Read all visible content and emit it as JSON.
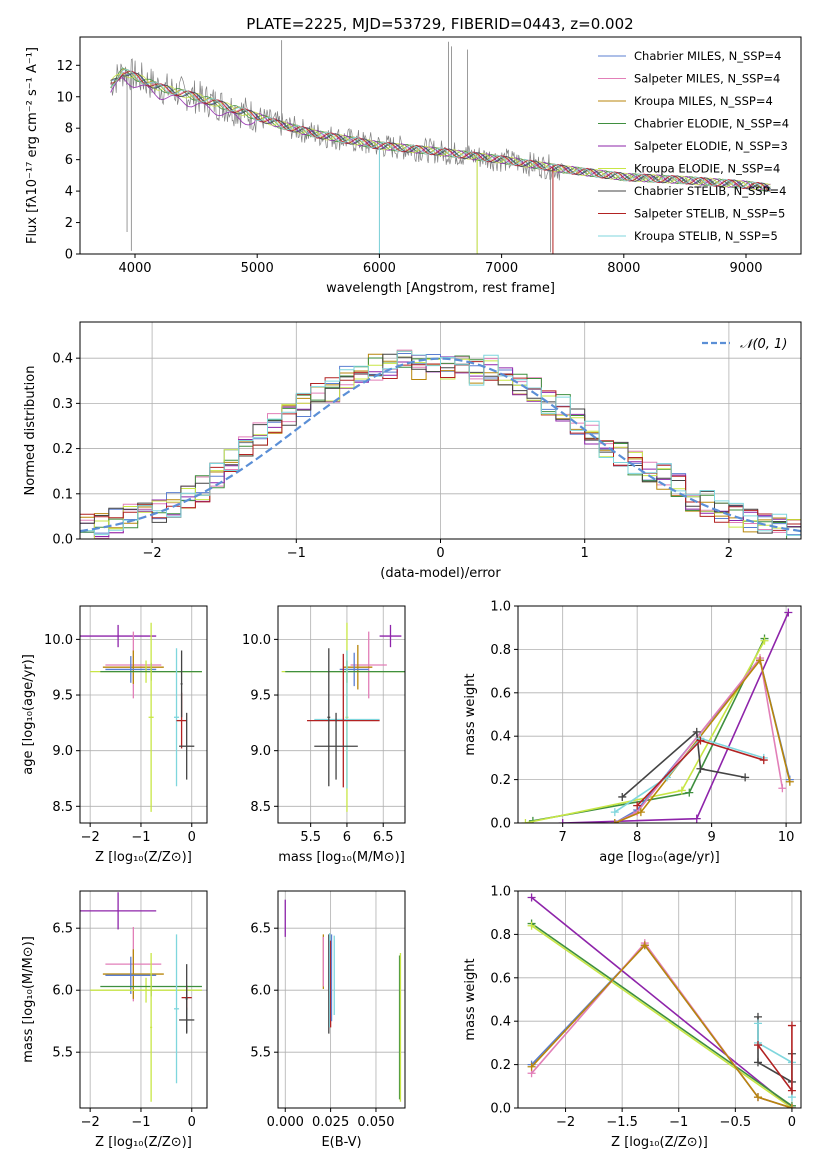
{
  "figure_title": "PLATE=2225, MJD=53729, FIBERID=0443, z=0.002",
  "colors": {
    "Chabrier MILES": "#5b7fd1",
    "Salpeter MILES": "#e27fb8",
    "Kroupa MILES": "#b8860b",
    "Chabrier ELODIE": "#3f8f3f",
    "Salpeter ELODIE": "#8e24aa",
    "Kroupa ELODIE": "#c8e645",
    "Chabrier STELIB": "#444444",
    "Salpeter STELIB": "#b22222",
    "Kroupa STELIB": "#7fd6dd",
    "observed": "#808080",
    "model_line": "#8fd8dc",
    "normal_curve": "#5b8fd6"
  },
  "chart_data": [
    {
      "id": "spectrum",
      "type": "line",
      "title": "PLATE=2225, MJD=53729, FIBERID=0443, z=0.002",
      "xlabel": "wavelength [Angstrom, rest frame]",
      "ylabel": "Flux [fλ10⁻¹⁷ erg cm⁻² s⁻¹ A⁻¹]",
      "xlim": [
        3550,
        9450
      ],
      "ylim": [
        0,
        13.8
      ],
      "xticks": [
        4000,
        5000,
        6000,
        7000,
        8000,
        9000
      ],
      "yticks": [
        0,
        2,
        4,
        6,
        8,
        10,
        12
      ],
      "legend": "top-right",
      "legend_labels": [
        "Chabrier MILES, N_SSP=4",
        "Salpeter MILES, N_SSP=4",
        "Kroupa MILES, N_SSP=4",
        "Chabrier ELODIE, N_SSP=4",
        "Salpeter ELODIE, N_SSP=3",
        "Kroupa ELODIE, N_SSP=4",
        "Chabrier STELIB, N_SSP=4",
        "Salpeter STELIB, N_SSP=5",
        "Kroupa STELIB, N_SSP=5"
      ],
      "continuum": {
        "x": [
          3800,
          3900,
          4000,
          4200,
          4500,
          4900,
          5200,
          5500,
          6000,
          6500,
          7000,
          7500,
          8000,
          8500,
          9000,
          9200
        ],
        "y": [
          10.8,
          11.6,
          11.3,
          10.6,
          10.0,
          9.0,
          8.2,
          7.6,
          6.9,
          6.5,
          6.0,
          5.4,
          4.9,
          4.7,
          4.4,
          4.2
        ]
      },
      "spikes": [
        {
          "x": 3935,
          "y": 1.4
        },
        {
          "x": 3970,
          "y": 0.2
        },
        {
          "x": 5890,
          "y": 6.4
        },
        {
          "x": 6000,
          "y": 0.1
        },
        {
          "x": 6565,
          "y": 13.5
        },
        {
          "x": 6590,
          "y": 13.2
        },
        {
          "x": 6720,
          "y": 13.0
        },
        {
          "x": 6800,
          "y": 0.1
        },
        {
          "x": 7400,
          "y": 0.1
        },
        {
          "x": 5200,
          "y": 13.6
        }
      ]
    },
    {
      "id": "residuals",
      "type": "bar",
      "xlabel": "(data-model)/error",
      "ylabel": "Normed distribution",
      "xlim": [
        -2.5,
        2.5
      ],
      "ylim": [
        0,
        0.48
      ],
      "xticks": [
        -2,
        -1,
        0,
        1,
        2
      ],
      "yticks": [
        0.0,
        0.1,
        0.2,
        0.3,
        0.4
      ],
      "legend": "top-right",
      "legend_label": "𝒩(0, 1)",
      "bins": [
        -2.5,
        -2.4,
        -2.3,
        -2.2,
        -2.1,
        -2.0,
        -1.9,
        -1.8,
        -1.7,
        -1.6,
        -1.5,
        -1.4,
        -1.3,
        -1.2,
        -1.1,
        -1.0,
        -0.9,
        -0.8,
        -0.7,
        -0.6,
        -0.5,
        -0.4,
        -0.3,
        -0.2,
        -0.1,
        0.0,
        0.1,
        0.2,
        0.3,
        0.4,
        0.5,
        0.6,
        0.7,
        0.8,
        0.9,
        1.0,
        1.1,
        1.2,
        1.3,
        1.4,
        1.5,
        1.6,
        1.7,
        1.8,
        1.9,
        2.0,
        2.1,
        2.2,
        2.3,
        2.4,
        2.5
      ],
      "base_density": [
        0.025,
        0.03,
        0.04,
        0.05,
        0.055,
        0.06,
        0.075,
        0.09,
        0.11,
        0.14,
        0.17,
        0.2,
        0.23,
        0.25,
        0.28,
        0.3,
        0.32,
        0.33,
        0.36,
        0.37,
        0.38,
        0.38,
        0.39,
        0.38,
        0.39,
        0.38,
        0.38,
        0.37,
        0.38,
        0.36,
        0.34,
        0.33,
        0.3,
        0.29,
        0.26,
        0.24,
        0.21,
        0.19,
        0.17,
        0.15,
        0.14,
        0.12,
        0.09,
        0.08,
        0.065,
        0.05,
        0.045,
        0.04,
        0.03,
        0.02
      ],
      "series_names": [
        "Chabrier MILES",
        "Salpeter MILES",
        "Kroupa MILES",
        "Chabrier ELODIE",
        "Salpeter ELODIE",
        "Kroupa ELODIE",
        "Chabrier STELIB",
        "Salpeter STELIB",
        "Kroupa STELIB"
      ]
    },
    {
      "id": "age_vs_Z",
      "type": "scatter",
      "xlabel": "Z [log₁₀(Z/Z⊙)]",
      "ylabel": "age  [log₁₀(age/yr)]",
      "xlim": [
        -2.2,
        0.3
      ],
      "ylim": [
        8.35,
        10.3
      ],
      "xticks": [
        -2,
        -1,
        0
      ],
      "yticks": [
        8.5,
        9.0,
        9.5,
        10.0
      ],
      "points": [
        {
          "s": "Salpeter ELODIE",
          "x": -1.45,
          "xe": 0.75,
          "y": 10.03,
          "ye": 0.1
        },
        {
          "s": "Salpeter MILES",
          "x": -1.15,
          "xe": 0.55,
          "y": 9.77,
          "ye": 0.3
        },
        {
          "s": "Kroupa MILES",
          "x": -1.15,
          "xe": 0.6,
          "y": 9.75,
          "ye": 0.15
        },
        {
          "s": "Chabrier MILES",
          "x": -1.2,
          "xe": 0.5,
          "y": 9.73,
          "ye": 0.12
        },
        {
          "s": "Kroupa ELODIE",
          "x": -0.9,
          "xe": 1.1,
          "y": 9.71,
          "ye": 0.1
        },
        {
          "s": "Chabrier ELODIE",
          "x": -0.8,
          "xe": 1.0,
          "y": 9.71,
          "ye": 0.08
        },
        {
          "s": "Kroupa ELODIE",
          "x": -0.8,
          "xe": 0.05,
          "y": 9.3,
          "ye": 0.85
        },
        {
          "s": "Kroupa STELIB",
          "x": -0.3,
          "xe": 0.05,
          "y": 9.3,
          "ye": 0.62
        },
        {
          "s": "Salpeter STELIB",
          "x": -0.2,
          "xe": 0.1,
          "y": 9.27,
          "ye": 0.25
        },
        {
          "s": "Chabrier STELIB",
          "x": -0.1,
          "xe": 0.15,
          "y": 9.04,
          "ye": 0.3
        },
        {
          "s": "Chabrier STELIB",
          "x": -0.2,
          "xe": 0.02,
          "y": 9.6,
          "ye": 0.3
        }
      ]
    },
    {
      "id": "age_vs_mass",
      "type": "scatter",
      "xlabel": "mass [log₁₀(M/M⊙)]",
      "ylabel": "",
      "xlim": [
        5.05,
        6.8
      ],
      "ylim": [
        8.35,
        10.3
      ],
      "xticks": [
        5.5,
        6.0,
        6.5
      ],
      "yticks": [
        8.5,
        9.0,
        9.5,
        10.0
      ],
      "points": [
        {
          "s": "Salpeter ELODIE",
          "x": 6.6,
          "xe": 0.15,
          "y": 10.03,
          "ye": 0.1
        },
        {
          "s": "Salpeter MILES",
          "x": 6.3,
          "xe": 0.25,
          "y": 9.77,
          "ye": 0.3
        },
        {
          "s": "Kroupa MILES",
          "x": 6.15,
          "xe": 0.2,
          "y": 9.75,
          "ye": 0.2
        },
        {
          "s": "Chabrier MILES",
          "x": 6.1,
          "xe": 0.2,
          "y": 9.73,
          "ye": 0.15
        },
        {
          "s": "Kroupa ELODIE",
          "x": 6.0,
          "xe": 0.9,
          "y": 9.71,
          "ye": 0.1
        },
        {
          "s": "Chabrier ELODIE",
          "x": 6.0,
          "xe": 0.85,
          "y": 9.71,
          "ye": 0.1
        },
        {
          "s": "Kroupa ELODIE",
          "x": 6.0,
          "xe": 0.02,
          "y": 9.3,
          "ye": 0.85
        },
        {
          "s": "Kroupa STELIB",
          "x": 6.0,
          "xe": 0.45,
          "y": 9.28,
          "ye": 0.62
        },
        {
          "s": "Salpeter STELIB",
          "x": 5.95,
          "xe": 0.5,
          "y": 9.27,
          "ye": 0.6
        },
        {
          "s": "Chabrier STELIB",
          "x": 5.85,
          "xe": 0.3,
          "y": 9.04,
          "ye": 0.3
        },
        {
          "s": "Chabrier STELIB",
          "x": 5.75,
          "xe": 0.02,
          "y": 9.3,
          "ye": 0.62
        }
      ]
    },
    {
      "id": "weight_vs_age",
      "type": "line",
      "xlabel": "age  [log₁₀(age/yr)]",
      "ylabel": "mass weight",
      "xlim": [
        6.4,
        10.2
      ],
      "ylim": [
        0,
        1.0
      ],
      "xticks": [
        7,
        8,
        9,
        10
      ],
      "yticks": [
        0.0,
        0.2,
        0.4,
        0.6,
        0.8,
        1.0
      ],
      "series": [
        {
          "name": "Salpeter ELODIE",
          "x": [
            7.0,
            8.8,
            10.03
          ],
          "y": [
            0.0,
            0.02,
            0.97
          ]
        },
        {
          "name": "Chabrier ELODIE",
          "x": [
            6.6,
            8.7,
            9.71
          ],
          "y": [
            0.01,
            0.14,
            0.85
          ]
        },
        {
          "name": "Kroupa ELODIE",
          "x": [
            6.5,
            8.6,
            9.71
          ],
          "y": [
            0.0,
            0.15,
            0.84
          ]
        },
        {
          "name": "Chabrier MILES",
          "x": [
            7.7,
            8.0,
            9.65,
            10.05
          ],
          "y": [
            0.0,
            0.06,
            0.75,
            0.2
          ]
        },
        {
          "name": "Salpeter MILES",
          "x": [
            7.7,
            8.0,
            9.65,
            9.95
          ],
          "y": [
            0.0,
            0.05,
            0.76,
            0.16
          ]
        },
        {
          "name": "Kroupa MILES",
          "x": [
            7.7,
            8.05,
            9.65,
            10.05
          ],
          "y": [
            0.0,
            0.05,
            0.75,
            0.19
          ]
        },
        {
          "name": "Chabrier STELIB",
          "x": [
            7.8,
            8.8,
            8.85,
            9.45
          ],
          "y": [
            0.12,
            0.42,
            0.25,
            0.21
          ]
        },
        {
          "name": "Kroupa STELIB",
          "x": [
            7.7,
            8.4,
            8.85,
            9.7
          ],
          "y": [
            0.05,
            0.21,
            0.39,
            0.3
          ]
        },
        {
          "name": "Salpeter STELIB",
          "x": [
            8.0,
            8.85,
            9.7
          ],
          "y": [
            0.08,
            0.38,
            0.29
          ]
        }
      ]
    },
    {
      "id": "mass_vs_Z",
      "type": "scatter",
      "xlabel": "Z [log₁₀(Z/Z⊙)]",
      "ylabel": "mass [log₁₀(M/M⊙)]",
      "xlim": [
        -2.2,
        0.3
      ],
      "ylim": [
        5.05,
        6.8
      ],
      "xticks": [
        -2,
        -1,
        0
      ],
      "yticks": [
        5.5,
        6.0,
        6.5
      ],
      "points": [
        {
          "s": "Salpeter ELODIE",
          "x": -1.45,
          "xe": 0.75,
          "y": 6.64,
          "ye": 0.15
        },
        {
          "s": "Salpeter MILES",
          "x": -1.15,
          "xe": 0.55,
          "y": 6.21,
          "ye": 0.3
        },
        {
          "s": "Kroupa MILES",
          "x": -1.15,
          "xe": 0.6,
          "y": 6.13,
          "ye": 0.2
        },
        {
          "s": "Chabrier MILES",
          "x": -1.2,
          "xe": 0.5,
          "y": 6.12,
          "ye": 0.15
        },
        {
          "s": "Kroupa ELODIE",
          "x": -0.9,
          "xe": 1.1,
          "y": 6.0,
          "ye": 0.1
        },
        {
          "s": "Chabrier ELODIE",
          "x": -0.8,
          "xe": 1.0,
          "y": 6.03,
          "ye": 0.08
        },
        {
          "s": "Kroupa ELODIE",
          "x": -0.8,
          "xe": 0.02,
          "y": 5.7,
          "ye": 0.6
        },
        {
          "s": "Kroupa STELIB",
          "x": -0.3,
          "xe": 0.05,
          "y": 5.85,
          "ye": 0.6
        },
        {
          "s": "Salpeter STELIB",
          "x": -0.1,
          "xe": 0.1,
          "y": 5.94,
          "ye": 0.1
        },
        {
          "s": "Chabrier STELIB",
          "x": -0.1,
          "xe": 0.15,
          "y": 5.76,
          "ye": 0.1
        },
        {
          "s": "Chabrier STELIB",
          "x": -0.1,
          "xe": 0.02,
          "y": 5.93,
          "ye": 0.28
        }
      ]
    },
    {
      "id": "mass_vs_EBV",
      "type": "scatter",
      "xlabel": "E(B-V)",
      "ylabel": "",
      "xlim": [
        -0.004,
        0.066
      ],
      "ylim": [
        5.05,
        6.8
      ],
      "xticks": [
        0.0,
        0.025,
        0.05
      ],
      "xticklabels": [
        "0.000",
        "0.025",
        "0.050"
      ],
      "yticks": [
        5.5,
        6.0,
        6.5
      ],
      "points": [
        {
          "s": "Salpeter ELODIE",
          "x": 0.0,
          "xe": 0.0,
          "y": 6.58,
          "ye": 0.15
        },
        {
          "s": "Kroupa MILES",
          "x": 0.021,
          "xe": 0.0,
          "y": 6.23,
          "ye": 0.22
        },
        {
          "s": "Salpeter MILES",
          "x": 0.021,
          "xe": 0.0,
          "y": 6.23,
          "ye": 0.2
        },
        {
          "s": "Chabrier STELIB",
          "x": 0.024,
          "xe": 0.0,
          "y": 6.05,
          "ye": 0.4
        },
        {
          "s": "Kroupa STELIB",
          "x": 0.0245,
          "xe": 0.0,
          "y": 6.08,
          "ye": 0.38
        },
        {
          "s": "Salpeter STELIB",
          "x": 0.025,
          "xe": 0.0,
          "y": 6.05,
          "ye": 0.35
        },
        {
          "s": "Chabrier MILES",
          "x": 0.0255,
          "xe": 0.0,
          "y": 6.1,
          "ye": 0.35
        },
        {
          "s": "Kroupa STELIB",
          "x": 0.027,
          "xe": 0.0,
          "y": 6.12,
          "ye": 0.32
        },
        {
          "s": "Chabrier ELODIE",
          "x": 0.063,
          "xe": 0.0,
          "y": 5.7,
          "ye": 0.58
        },
        {
          "s": "Kroupa ELODIE",
          "x": 0.0635,
          "xe": 0.0,
          "y": 5.7,
          "ye": 0.6
        }
      ]
    },
    {
      "id": "weight_vs_Z",
      "type": "line",
      "xlabel": "Z [log₁₀(Z/Z⊙)]",
      "ylabel": "mass weight",
      "xlim": [
        -2.42,
        0.08
      ],
      "ylim": [
        0,
        1.0
      ],
      "xticks": [
        -2.0,
        -1.5,
        -1.0,
        -0.5,
        0.0
      ],
      "yticks": [
        0.0,
        0.2,
        0.4,
        0.6,
        0.8,
        1.0
      ],
      "series": [
        {
          "name": "Salpeter ELODIE",
          "x": [
            -2.3,
            0.0
          ],
          "y": [
            0.97,
            0.0
          ]
        },
        {
          "name": "Chabrier ELODIE",
          "x": [
            -2.3,
            0.0
          ],
          "y": [
            0.85,
            0.01
          ]
        },
        {
          "name": "Kroupa ELODIE",
          "x": [
            -2.3,
            0.0
          ],
          "y": [
            0.84,
            0.0
          ]
        },
        {
          "name": "Chabrier MILES",
          "x": [
            -2.3,
            -1.3,
            -0.3,
            0.0
          ],
          "y": [
            0.2,
            0.75,
            0.05,
            0.0
          ]
        },
        {
          "name": "Salpeter MILES",
          "x": [
            -2.3,
            -1.3,
            -0.3,
            0.0
          ],
          "y": [
            0.16,
            0.76,
            0.05,
            0.0
          ]
        },
        {
          "name": "Kroupa MILES",
          "x": [
            -2.3,
            -1.3,
            -0.3,
            0.0
          ],
          "y": [
            0.19,
            0.75,
            0.05,
            0.0
          ]
        },
        {
          "name": "Chabrier STELIB",
          "x": [
            -0.3,
            -0.3,
            0.0,
            0.0
          ],
          "y": [
            0.42,
            0.21,
            0.12,
            0.25
          ]
        },
        {
          "name": "Kroupa STELIB",
          "x": [
            -0.3,
            -0.3,
            0.0,
            0.0
          ],
          "y": [
            0.39,
            0.3,
            0.21,
            0.05
          ]
        },
        {
          "name": "Salpeter STELIB",
          "x": [
            -0.3,
            0.0,
            0.0
          ],
          "y": [
            0.29,
            0.08,
            0.38
          ]
        }
      ]
    }
  ]
}
